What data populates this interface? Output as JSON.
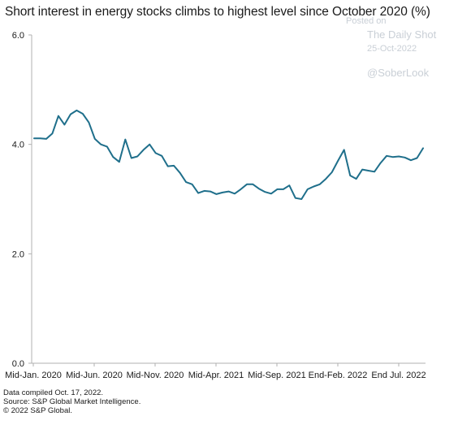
{
  "chart_data": {
    "type": "line",
    "title": "Short interest in energy stocks climbs to highest level since October 2020 (%)",
    "xlabel": "",
    "ylabel": "",
    "ylim": [
      0,
      6
    ],
    "yticks": [
      "0.0",
      "2.0",
      "4.0",
      "6.0"
    ],
    "xtick_labels": [
      "Mid-Jan. 2020",
      "Mid-Jun. 2020",
      "Mid-Nov. 2020",
      "Mid-Apr. 2021",
      "Mid-Sep. 2021",
      "End-Feb. 2022",
      "End Jul. 2022"
    ],
    "grid": false,
    "line_color": "#1f6f8b",
    "series": [
      {
        "values": [
          4.11,
          4.11,
          4.1,
          4.2,
          4.52,
          4.36,
          4.55,
          4.62,
          4.56,
          4.4,
          4.1,
          4.0,
          3.96,
          3.77,
          3.68,
          4.09,
          3.75,
          3.78,
          3.9,
          4.0,
          3.84,
          3.79,
          3.6,
          3.61,
          3.48,
          3.31,
          3.27,
          3.11,
          3.15,
          3.14,
          3.09,
          3.12,
          3.14,
          3.1,
          3.18,
          3.27,
          3.27,
          3.19,
          3.13,
          3.1,
          3.18,
          3.18,
          3.25,
          3.02,
          3.0,
          3.18,
          3.23,
          3.27,
          3.37,
          3.49,
          3.7,
          3.9,
          3.43,
          3.37,
          3.54,
          3.52,
          3.5,
          3.66,
          3.79,
          3.77,
          3.78,
          3.76,
          3.71,
          3.75,
          3.93
        ]
      }
    ]
  },
  "watermark": {
    "posted": "Posted on",
    "brand": "The Daily Shot",
    "date": "25-Oct-2022",
    "handle": "@SoberLook"
  },
  "footer": {
    "line1": "Data compiled Oct. 17, 2022.",
    "line2": "Source: S&P Global Market Intelligence.",
    "line3": "© 2022 S&P Global."
  }
}
